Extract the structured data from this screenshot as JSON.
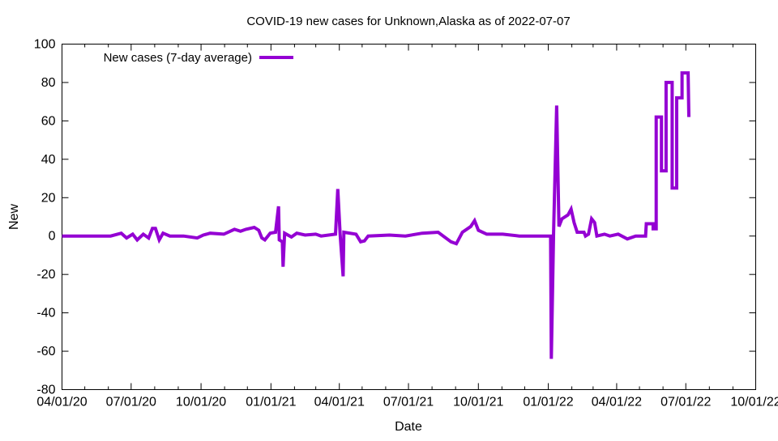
{
  "chart_data": {
    "type": "line",
    "title": "COVID-19 new cases for Unknown,Alaska as of 2022-07-07",
    "xlabel": "Date",
    "ylabel": "New",
    "xlim": [
      "2020-04-01",
      "2022-10-01"
    ],
    "ylim": [
      -80,
      100
    ],
    "x_ticks": [
      "04/01/20",
      "07/01/20",
      "10/01/20",
      "01/01/21",
      "04/01/21",
      "07/01/21",
      "10/01/21",
      "01/01/22",
      "04/01/22",
      "07/01/22",
      "10/01/22"
    ],
    "x_tick_dates": [
      "2020-04-01",
      "2020-07-01",
      "2020-10-01",
      "2021-01-01",
      "2021-04-01",
      "2021-07-01",
      "2021-10-01",
      "2022-01-01",
      "2022-04-01",
      "2022-07-01",
      "2022-10-01"
    ],
    "y_ticks": [
      -80,
      -60,
      -40,
      -20,
      0,
      20,
      40,
      60,
      80,
      100
    ],
    "grid": false,
    "legend_position": "top-left",
    "series": [
      {
        "name": "New cases (7-day average)",
        "color": "#9400d3",
        "points": [
          [
            "2020-04-01",
            0
          ],
          [
            "2020-06-04",
            0
          ],
          [
            "2020-06-18",
            1.5
          ],
          [
            "2020-06-25",
            -1
          ],
          [
            "2020-07-03",
            1
          ],
          [
            "2020-07-09",
            -2
          ],
          [
            "2020-07-17",
            1
          ],
          [
            "2020-07-24",
            -1
          ],
          [
            "2020-07-29",
            4
          ],
          [
            "2020-08-02",
            4
          ],
          [
            "2020-08-07",
            -2
          ],
          [
            "2020-08-12",
            1.5
          ],
          [
            "2020-08-21",
            0
          ],
          [
            "2020-09-08",
            0
          ],
          [
            "2020-09-26",
            -1
          ],
          [
            "2020-10-04",
            0.5
          ],
          [
            "2020-10-13",
            1.5
          ],
          [
            "2020-10-31",
            1
          ],
          [
            "2020-11-14",
            3.5
          ],
          [
            "2020-11-22",
            2.5
          ],
          [
            "2020-11-29",
            3.5
          ],
          [
            "2020-12-10",
            4.5
          ],
          [
            "2020-12-16",
            3
          ],
          [
            "2020-12-20",
            -1
          ],
          [
            "2020-12-24",
            -2
          ],
          [
            "2020-12-31",
            1.5
          ],
          [
            "2021-01-07",
            2
          ],
          [
            "2021-01-11",
            15.5
          ],
          [
            "2021-01-12",
            -2
          ],
          [
            "2021-01-16",
            -3
          ],
          [
            "2021-01-17",
            -16
          ],
          [
            "2021-01-19",
            1.5
          ],
          [
            "2021-01-28",
            -0.5
          ],
          [
            "2021-02-04",
            1.5
          ],
          [
            "2021-02-15",
            0.5
          ],
          [
            "2021-03-01",
            1
          ],
          [
            "2021-03-08",
            0
          ],
          [
            "2021-03-27",
            1
          ],
          [
            "2021-03-30",
            24.5
          ],
          [
            "2021-04-02",
            1
          ],
          [
            "2021-04-06",
            -21
          ],
          [
            "2021-04-07",
            2
          ],
          [
            "2021-04-23",
            1
          ],
          [
            "2021-04-29",
            -3
          ],
          [
            "2021-05-04",
            -2.5
          ],
          [
            "2021-05-09",
            0
          ],
          [
            "2021-06-06",
            0.5
          ],
          [
            "2021-06-27",
            0
          ],
          [
            "2021-07-19",
            1.5
          ],
          [
            "2021-08-09",
            2
          ],
          [
            "2021-08-26",
            -3
          ],
          [
            "2021-09-02",
            -4
          ],
          [
            "2021-09-10",
            2
          ],
          [
            "2021-09-21",
            5
          ],
          [
            "2021-09-26",
            8
          ],
          [
            "2021-10-01",
            3
          ],
          [
            "2021-10-12",
            1
          ],
          [
            "2021-11-02",
            1
          ],
          [
            "2021-11-24",
            0
          ],
          [
            "2021-12-15",
            0
          ],
          [
            "2022-01-04",
            0
          ],
          [
            "2022-01-05",
            -64
          ],
          [
            "2022-01-08",
            2
          ],
          [
            "2022-01-12",
            68
          ],
          [
            "2022-01-15",
            5
          ],
          [
            "2022-01-19",
            9
          ],
          [
            "2022-01-27",
            11
          ],
          [
            "2022-01-31",
            14
          ],
          [
            "2022-02-04",
            7
          ],
          [
            "2022-02-08",
            2
          ],
          [
            "2022-02-17",
            2
          ],
          [
            "2022-02-19",
            0
          ],
          [
            "2022-02-23",
            1
          ],
          [
            "2022-02-27",
            9
          ],
          [
            "2022-03-03",
            7
          ],
          [
            "2022-03-06",
            0
          ],
          [
            "2022-03-16",
            1
          ],
          [
            "2022-03-23",
            0
          ],
          [
            "2022-04-03",
            1
          ],
          [
            "2022-04-15",
            -1.5
          ],
          [
            "2022-04-26",
            0
          ],
          [
            "2022-05-09",
            0
          ],
          [
            "2022-05-10",
            6.4
          ],
          [
            "2022-05-19",
            6.4
          ],
          [
            "2022-05-19",
            3.8
          ],
          [
            "2022-05-23",
            3.8
          ],
          [
            "2022-05-23",
            62
          ],
          [
            "2022-05-30",
            62
          ],
          [
            "2022-05-30",
            34
          ],
          [
            "2022-06-05",
            34
          ],
          [
            "2022-06-05",
            80
          ],
          [
            "2022-06-13",
            80
          ],
          [
            "2022-06-13",
            25
          ],
          [
            "2022-06-19",
            25
          ],
          [
            "2022-06-19",
            72
          ],
          [
            "2022-06-26",
            72
          ],
          [
            "2022-06-26",
            85
          ],
          [
            "2022-07-04",
            85
          ],
          [
            "2022-07-05",
            62
          ]
        ]
      }
    ]
  }
}
